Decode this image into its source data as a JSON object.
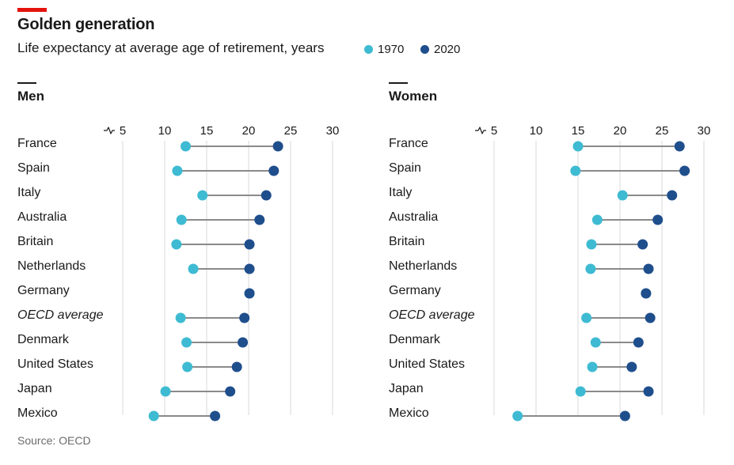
{
  "header": {
    "title": "Golden generation",
    "subtitle": "Life expectancy at average age of retirement, years"
  },
  "legend": [
    {
      "label": "1970",
      "color": "#3ebbd2"
    },
    {
      "label": "2020",
      "color": "#1f4e8c"
    }
  ],
  "source": "Source: OECD",
  "colors": {
    "y1970": "#3ebbd2",
    "y2020": "#1f4e8c",
    "connector": "#8a8a8a",
    "grid": "#d9d9d9"
  },
  "chart_data": [
    {
      "type": "dumbbell",
      "title": "Men",
      "xlim": [
        5,
        30
      ],
      "xticks": [
        5,
        10,
        15,
        20,
        25,
        30
      ],
      "axis_break": true,
      "grid": true,
      "categories": [
        "France",
        "Spain",
        "Italy",
        "Australia",
        "Britain",
        "Netherlands",
        "Germany",
        "OECD average",
        "Denmark",
        "United States",
        "Japan",
        "Mexico"
      ],
      "italic_categories": [
        "OECD average"
      ],
      "series": [
        {
          "name": "1970",
          "values": [
            12.5,
            11.5,
            14.5,
            12.0,
            11.4,
            13.4,
            20.1,
            11.9,
            12.6,
            12.7,
            10.1,
            8.7
          ]
        },
        {
          "name": "2020",
          "values": [
            23.5,
            23.0,
            22.1,
            21.3,
            20.1,
            20.1,
            20.1,
            19.5,
            19.3,
            18.6,
            17.8,
            16.0
          ]
        }
      ]
    },
    {
      "type": "dumbbell",
      "title": "Women",
      "xlim": [
        5,
        30
      ],
      "xticks": [
        5,
        10,
        15,
        20,
        25,
        30
      ],
      "axis_break": true,
      "grid": true,
      "categories": [
        "France",
        "Spain",
        "Italy",
        "Australia",
        "Britain",
        "Netherlands",
        "Germany",
        "OECD average",
        "Denmark",
        "United States",
        "Japan",
        "Mexico"
      ],
      "italic_categories": [
        "OECD average"
      ],
      "series": [
        {
          "name": "1970",
          "values": [
            15.0,
            14.7,
            20.3,
            17.3,
            16.6,
            16.5,
            23.1,
            16.0,
            17.1,
            16.7,
            15.3,
            7.8
          ]
        },
        {
          "name": "2020",
          "values": [
            27.1,
            27.7,
            26.2,
            24.5,
            22.7,
            23.4,
            23.1,
            23.6,
            22.2,
            21.4,
            23.4,
            20.6
          ]
        }
      ]
    }
  ]
}
